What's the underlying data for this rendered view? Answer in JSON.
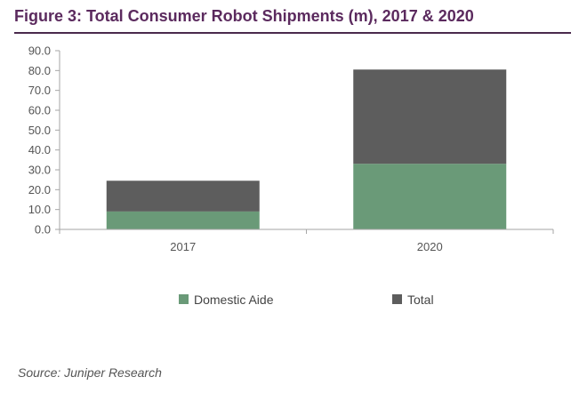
{
  "title": "Figure 3: Total Consumer Robot Shipments (m), 2017 & 2020",
  "source": "Source: Juniper Research",
  "colors": {
    "domestic": "#6a9a78",
    "total": "#5d5d5d",
    "axis": "#a6a6a6",
    "title": "#5b2a5e"
  },
  "chart_data": {
    "type": "bar",
    "stacked": true,
    "categories": [
      "2017",
      "2020"
    ],
    "series": [
      {
        "name": "Domestic Aide",
        "values": [
          9.0,
          33.0
        ],
        "color": "#6a9a78"
      },
      {
        "name": "Total",
        "values": [
          24.5,
          80.5
        ],
        "color": "#5d5d5d"
      }
    ],
    "ylim": [
      0,
      90
    ],
    "yticks": [
      "0.0",
      "10.0",
      "20.0",
      "30.0",
      "40.0",
      "50.0",
      "60.0",
      "70.0",
      "80.0",
      "90.0"
    ],
    "grid": false,
    "legend_position": "bottom"
  }
}
